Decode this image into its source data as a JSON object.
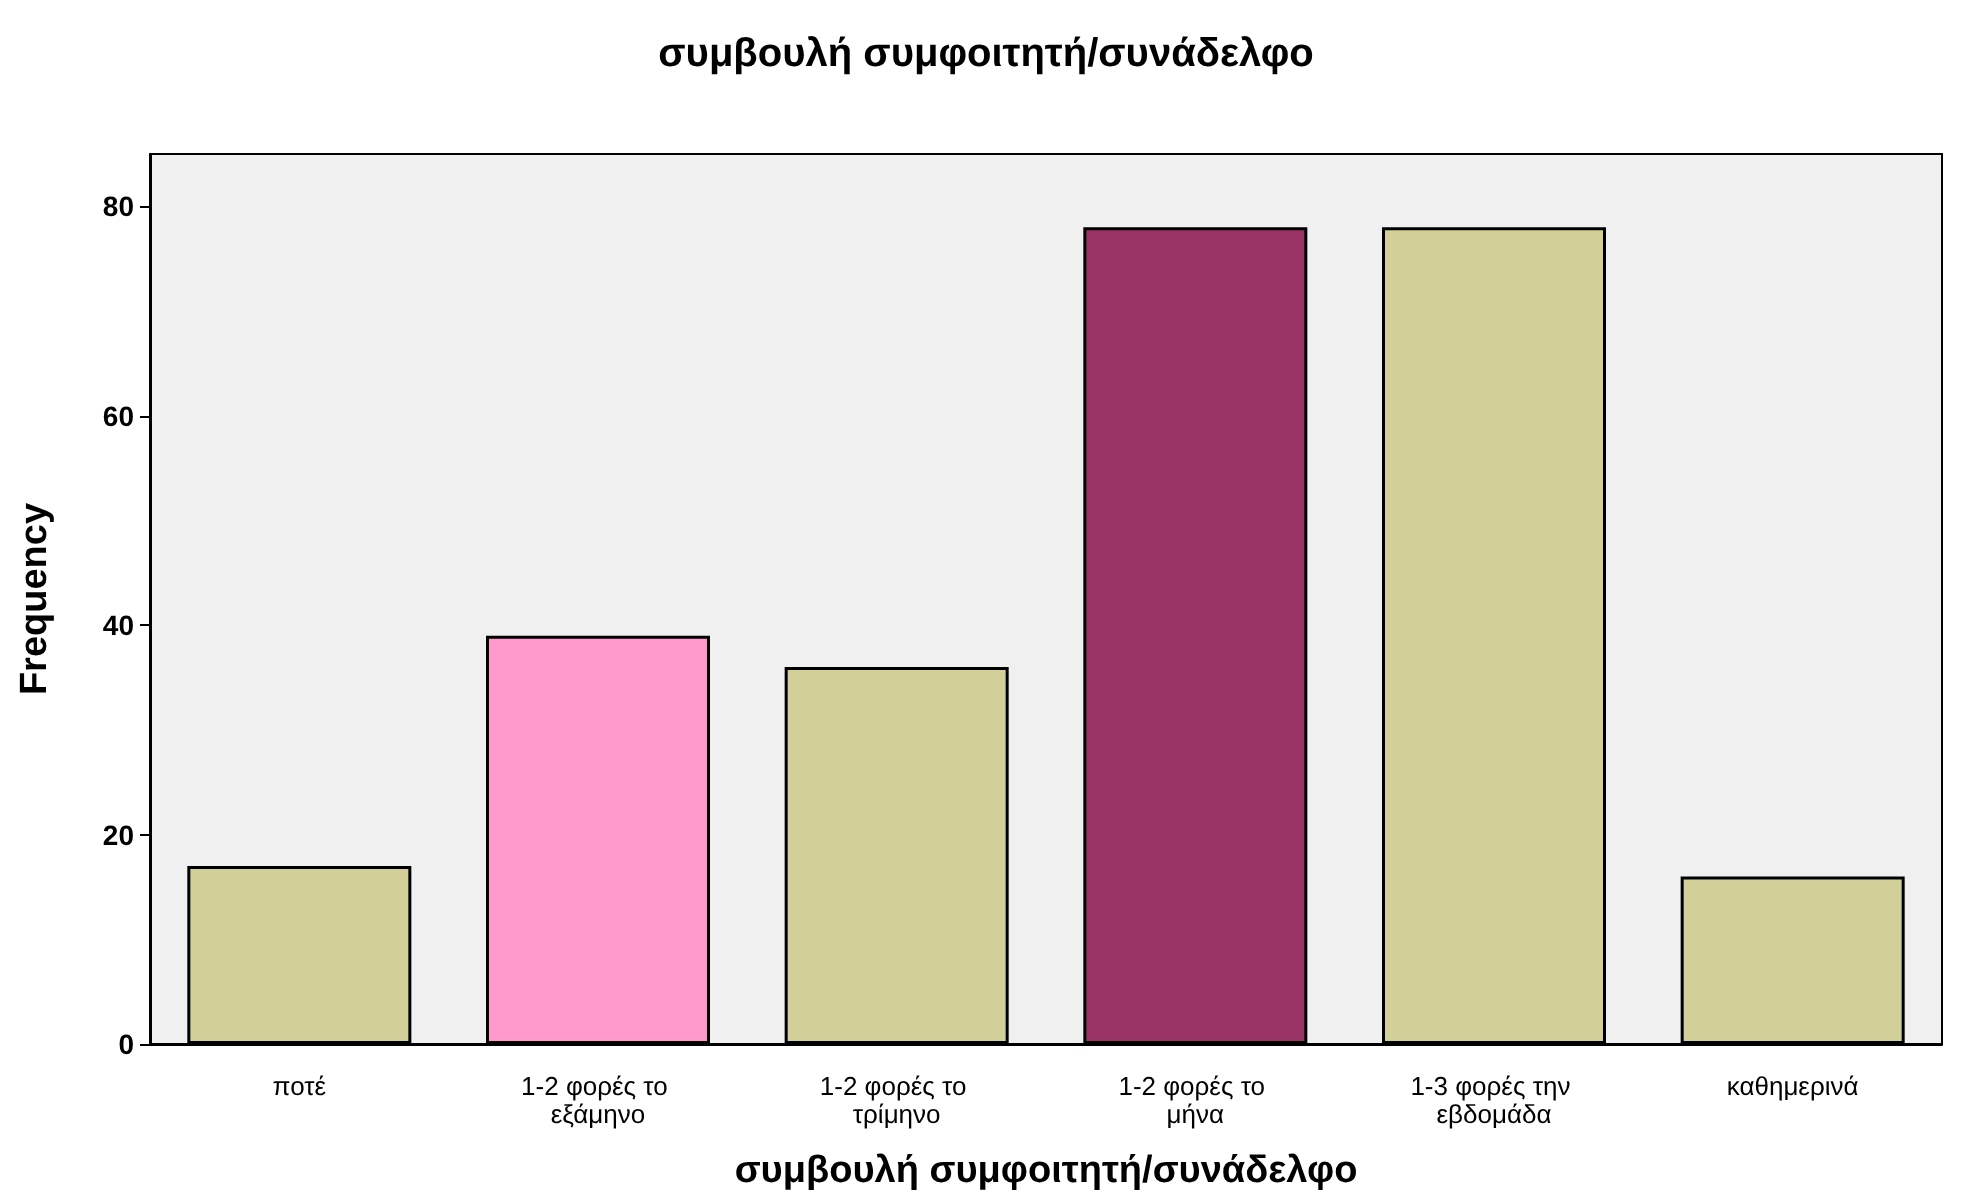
{
  "chart_data": {
    "type": "bar",
    "title": "συμβουλή συμφοιτητή/συνάδελφο",
    "xlabel": "συμβουλή συμφοιτητή/συνάδελφο",
    "ylabel": "Frequency",
    "categories": [
      "ποτέ",
      "1-2 φορές το εξάμηνο",
      "1-2 φορές το τρίμηνο",
      "1-2 φορές το μήνα",
      "1-3 φορές την εβδομάδα",
      "καθημερινά"
    ],
    "values": [
      17,
      39,
      36,
      78,
      78,
      16
    ],
    "colors": [
      "#d3cf98",
      "#ff99cc",
      "#d3cf98",
      "#993366",
      "#d3cf98",
      "#d3cf98"
    ],
    "ylim": [
      0,
      85
    ],
    "yticks": [
      0,
      20,
      40,
      60,
      80
    ],
    "grid": false
  }
}
